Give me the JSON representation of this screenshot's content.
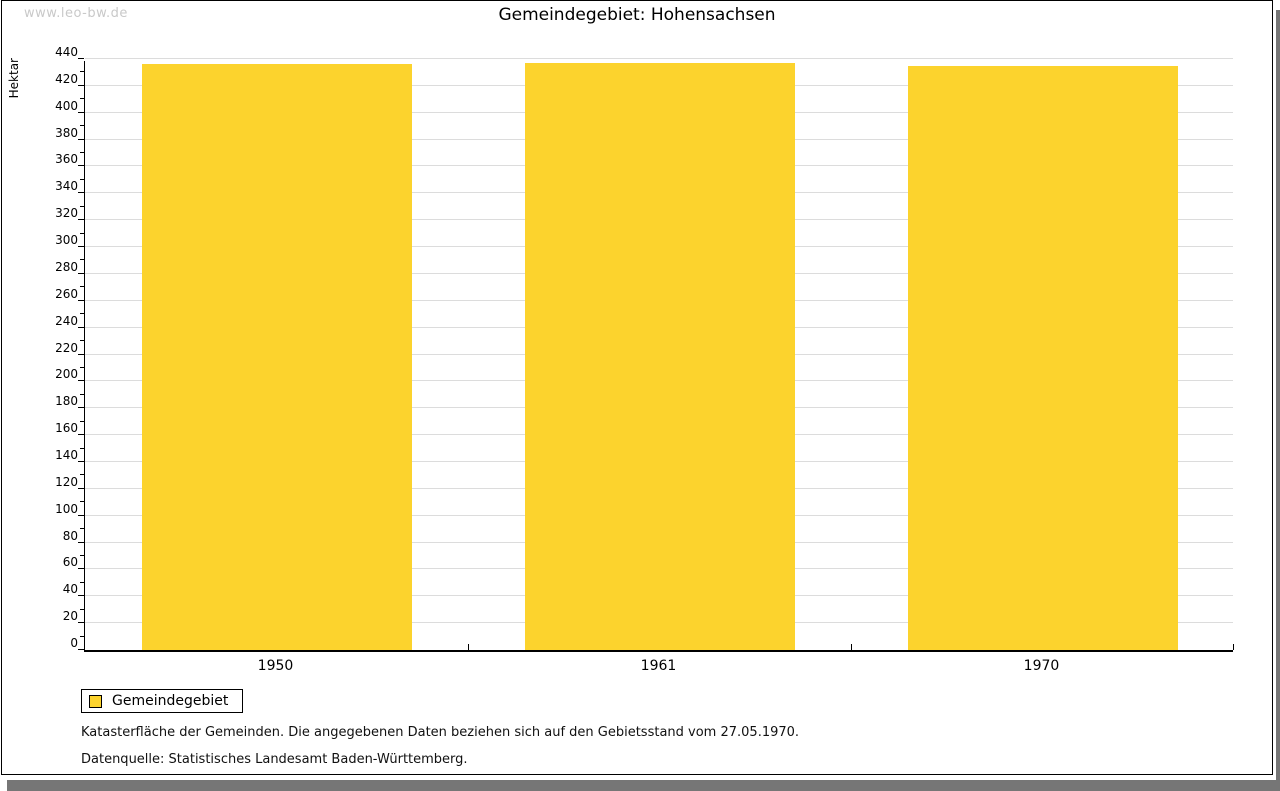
{
  "watermark": "www.leo-bw.de",
  "title": "Gemeindegebiet: Hohensachsen",
  "chart_data": {
    "type": "bar",
    "title": "Gemeindegebiet: Hohensachsen",
    "categories": [
      "1950",
      "1961",
      "1970"
    ],
    "series": [
      {
        "name": "Gemeindegebiet",
        "values": [
          436,
          437,
          435
        ],
        "color": "#fcd32d"
      }
    ],
    "xlabel": "",
    "ylabel": "Hektar",
    "ylim": [
      0,
      440
    ],
    "y_major_step": 20,
    "y_minor_step": 10,
    "grid": true,
    "gridline_color": "#dcdcdc",
    "legend_position": "bottom-left"
  },
  "legend": {
    "items": [
      {
        "label": "Gemeindegebiet",
        "color": "#fcd32d"
      }
    ]
  },
  "footnotes": [
    "Katasterfläche der Gemeinden. Die angegebenen Daten beziehen sich auf den Gebietsstand vom 27.05.1970.",
    "Datenquelle: Statistisches Landesamt Baden-Württemberg."
  ]
}
